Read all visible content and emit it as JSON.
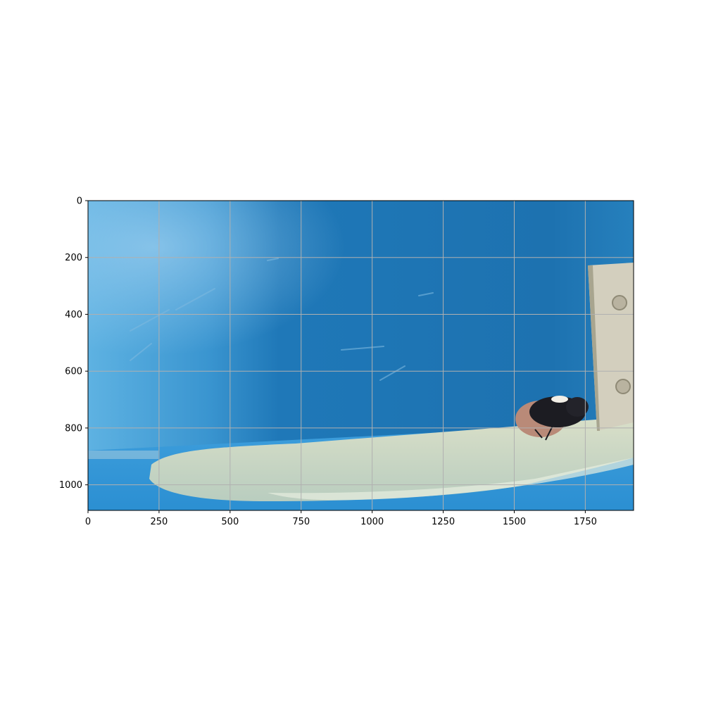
{
  "chart_data": {
    "type": "image",
    "xlim": [
      0,
      1920
    ],
    "ylim": [
      1090,
      0
    ],
    "x_ticks": [
      "0",
      "250",
      "500",
      "750",
      "1000",
      "1250",
      "1500",
      "1750"
    ],
    "y_ticks": [
      "0",
      "200",
      "400",
      "600",
      "800",
      "1000"
    ],
    "x_tick_values": [
      0,
      250,
      500,
      750,
      1000,
      1250,
      1500,
      1750
    ],
    "y_tick_values": [
      0,
      200,
      400,
      600,
      800,
      1000
    ],
    "grid": true,
    "colors": {
      "water_blue": "#1f78b8",
      "light_blue": "#5bb0e0",
      "tray_cream": "#cfd8c0",
      "plate_beige": "#d6d2c2",
      "insect_dark": "#1c1c22",
      "grid": "#b0b0b0"
    }
  }
}
